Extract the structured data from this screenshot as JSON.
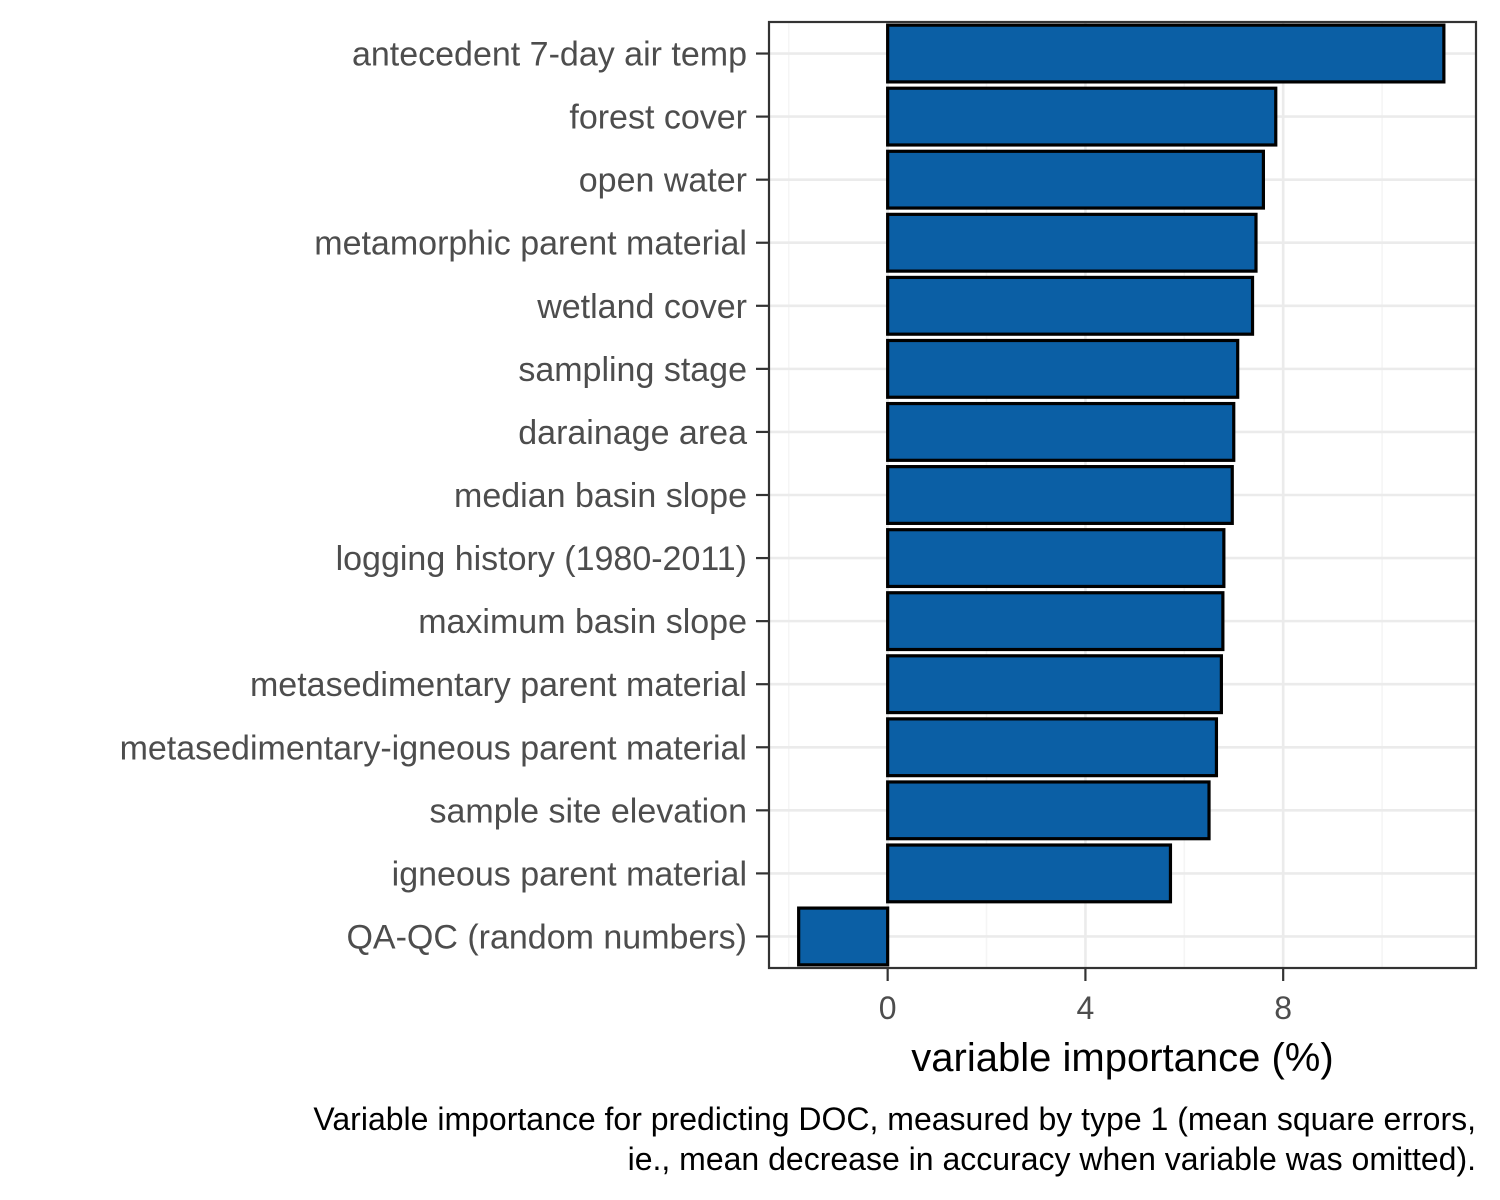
{
  "chart_data": {
    "type": "bar",
    "orientation": "horizontal",
    "categories": [
      "antecedent 7-day air temp",
      "forest cover",
      "open water",
      "metamorphic parent material",
      "wetland cover",
      "sampling stage",
      "darainage area",
      "median basin slope",
      "logging history (1980-2011)",
      "maximum basin slope",
      "metasedimentary parent material",
      "metasedimentary-igneous parent material",
      "sample site elevation",
      "igneous parent material",
      "QA-QC (random numbers)"
    ],
    "values": [
      11.25,
      7.85,
      7.6,
      7.45,
      7.38,
      7.08,
      7.0,
      6.97,
      6.8,
      6.78,
      6.75,
      6.65,
      6.5,
      5.72,
      -1.8
    ],
    "xlabel": "variable importance (%)",
    "ylabel": "",
    "xlim": [
      -2.4,
      11.9
    ],
    "x_ticks": [
      0,
      4,
      8
    ],
    "x_tick_labels": [
      "0",
      "4",
      "8"
    ],
    "grid": true,
    "colors": {
      "bar_fill": "#0b5fa5",
      "bar_stroke": "#000000",
      "grid_major": "#ebebeb",
      "grid_minor": "#f5f5f5",
      "panel_border": "#333333"
    },
    "caption": [
      "Variable importance for predicting DOC, measured by type 1 (mean square errors,",
      "ie., mean decrease in accuracy when variable was omitted)."
    ]
  }
}
